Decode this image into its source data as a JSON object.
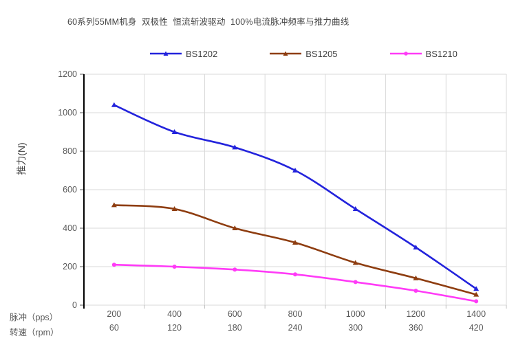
{
  "chart_data": {
    "type": "line",
    "title": "60系列55MM机身  双极性  恒流斩波驱动  100%电流脉冲频率与推力曲线",
    "ylabel": "推力(N)",
    "ylim": [
      0,
      1200
    ],
    "ytick_step": 200,
    "grid": true,
    "legend_position": "top",
    "x_rows": [
      {
        "label": "脉冲（pps）",
        "values": [
          200,
          400,
          600,
          800,
          1000,
          1200,
          1400
        ]
      },
      {
        "label": "转速（rpm）",
        "values": [
          60,
          120,
          180,
          240,
          300,
          360,
          420
        ]
      }
    ],
    "series": [
      {
        "name": "BS1202",
        "color": "#2323dc",
        "marker": "triangle",
        "values": [
          1040,
          900,
          820,
          700,
          500,
          300,
          85
        ]
      },
      {
        "name": "BS1205",
        "color": "#8e3d10",
        "marker": "triangle",
        "values": [
          520,
          500,
          400,
          325,
          220,
          140,
          55
        ]
      },
      {
        "name": "BS1210",
        "color": "#ff3bf7",
        "marker": "circle",
        "values": [
          210,
          200,
          185,
          160,
          120,
          75,
          20
        ]
      }
    ],
    "colors": {
      "axis": "#000000",
      "grid": "#d9d9d9",
      "tick_mark": "#bfbfbf",
      "text": "#595959"
    }
  }
}
